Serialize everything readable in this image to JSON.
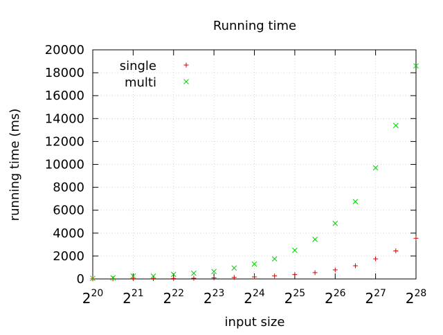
{
  "chart_data": {
    "type": "scatter",
    "title": "Running time",
    "xlabel": "input size",
    "ylabel": "running time (ms)",
    "x_scale": "log2",
    "x_ticks": [
      {
        "base": "2",
        "exp": "20",
        "value": 1048576
      },
      {
        "base": "2",
        "exp": "21",
        "value": 2097152
      },
      {
        "base": "2",
        "exp": "22",
        "value": 4194304
      },
      {
        "base": "2",
        "exp": "23",
        "value": 8388608
      },
      {
        "base": "2",
        "exp": "24",
        "value": 16777216
      },
      {
        "base": "2",
        "exp": "25",
        "value": 33554432
      },
      {
        "base": "2",
        "exp": "26",
        "value": 67108864
      },
      {
        "base": "2",
        "exp": "27",
        "value": 134217728
      },
      {
        "base": "2",
        "exp": "28",
        "value": 268435456
      }
    ],
    "xlim": [
      1048576,
      268435456
    ],
    "ylim": [
      0,
      20000
    ],
    "y_ticks": [
      "0",
      "2000",
      "4000",
      "6000",
      "8000",
      "10000",
      "12000",
      "14000",
      "16000",
      "18000",
      "20000"
    ],
    "grid": true,
    "legend_position": "top-left",
    "x": [
      1048576,
      1482910,
      2097152,
      2965821,
      4194304,
      5931642,
      8388608,
      11863283,
      16777216,
      23726566,
      33554432,
      47453133,
      67108864,
      94906266,
      134217728,
      189812531,
      268435456
    ],
    "series": [
      {
        "name": "single",
        "marker": "plus",
        "color": "#cc0000",
        "values": [
          10,
          15,
          25,
          30,
          40,
          60,
          90,
          130,
          180,
          260,
          380,
          550,
          790,
          1150,
          1750,
          2450,
          3550
        ]
      },
      {
        "name": "multi",
        "marker": "cross",
        "color": "#00cc00",
        "values": [
          50,
          100,
          250,
          250,
          400,
          500,
          650,
          950,
          1300,
          1750,
          2500,
          3450,
          4850,
          6750,
          9700,
          13400,
          18600
        ]
      }
    ]
  }
}
